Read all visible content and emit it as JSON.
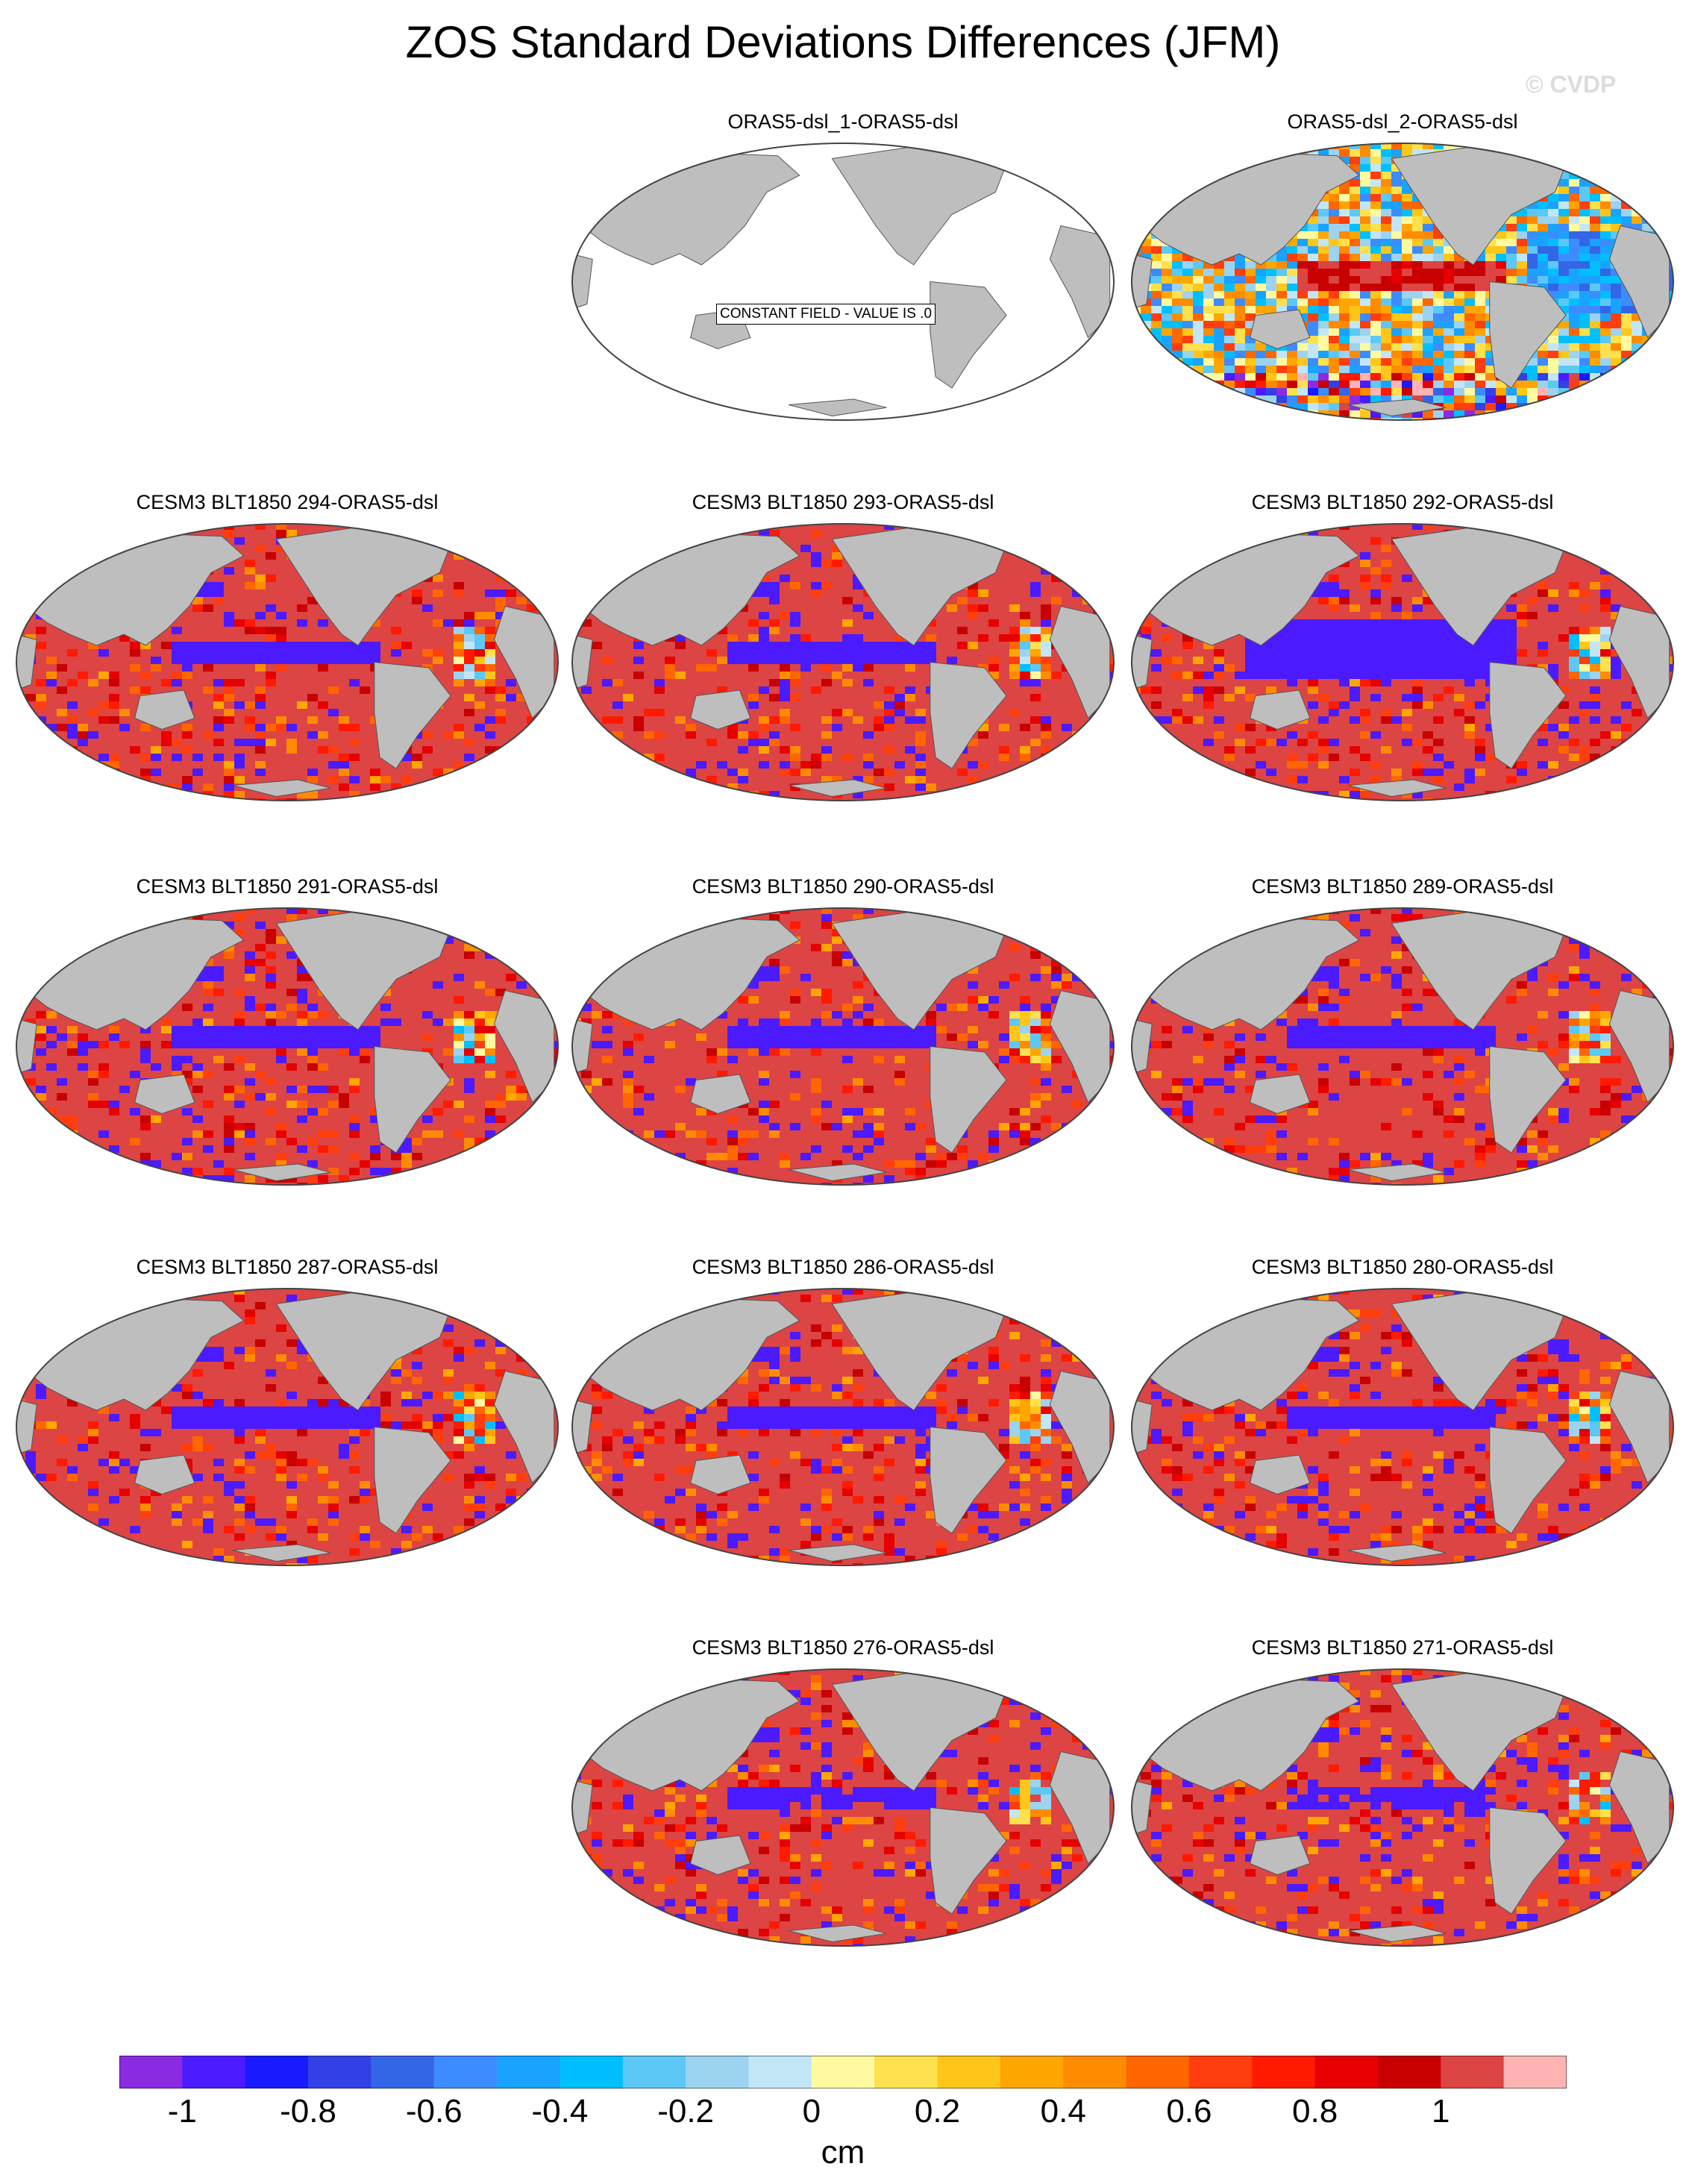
{
  "title": "ZOS Standard Deviations Differences (JFM)",
  "watermark": "© CVDP",
  "panels": [
    {
      "label": "ORAS5-dsl_1-ORAS5-dsl",
      "field": "constant",
      "annotation": "CONSTANT FIELD - VALUE IS .0",
      "seed": 1
    },
    {
      "label": "ORAS5-dsl_2-ORAS5-dsl",
      "field": "mixed",
      "seed": 2
    },
    {
      "label": "CESM3 BLT1850 294-ORAS5-dsl",
      "field": "model",
      "seed": 3
    },
    {
      "label": "CESM3 BLT1850 293-ORAS5-dsl",
      "field": "model",
      "seed": 4
    },
    {
      "label": "CESM3 BLT1850 292-ORAS5-dsl",
      "field": "model_strong",
      "seed": 5
    },
    {
      "label": "CESM3 BLT1850 291-ORAS5-dsl",
      "field": "model",
      "seed": 6
    },
    {
      "label": "CESM3 BLT1850 290-ORAS5-dsl",
      "field": "model",
      "seed": 7
    },
    {
      "label": "CESM3 BLT1850 289-ORAS5-dsl",
      "field": "model",
      "seed": 8
    },
    {
      "label": "CESM3 BLT1850 287-ORAS5-dsl",
      "field": "model",
      "seed": 9
    },
    {
      "label": "CESM3 BLT1850 286-ORAS5-dsl",
      "field": "model",
      "seed": 10
    },
    {
      "label": "CESM3 BLT1850 280-ORAS5-dsl",
      "field": "model",
      "seed": 11
    },
    {
      "label": "CESM3 BLT1850 276-ORAS5-dsl",
      "field": "model_weak",
      "seed": 12
    },
    {
      "label": "CESM3 BLT1850 271-ORAS5-dsl",
      "field": "model_weak",
      "seed": 13
    }
  ],
  "colorbar": {
    "colors": [
      "#8a2be2",
      "#4b1aff",
      "#1a1aff",
      "#3340e6",
      "#3366e6",
      "#3d8cff",
      "#19a3ff",
      "#00bfff",
      "#5cc8f5",
      "#9cd3f0",
      "#c3e6f7",
      "#fff9a0",
      "#ffe14d",
      "#ffc61a",
      "#ffa600",
      "#ff8c00",
      "#ff6600",
      "#ff3d0d",
      "#ff1a00",
      "#e60000",
      "#c80000",
      "#dd4444",
      "#ffb3b3"
    ],
    "tick_labels": [
      "-1",
      "-0.8",
      "-0.6",
      "-0.4",
      "-0.2",
      "0",
      "0.2",
      "0.4",
      "0.6",
      "0.8",
      "1"
    ],
    "units": "cm"
  },
  "land_color": "#bebebe"
}
